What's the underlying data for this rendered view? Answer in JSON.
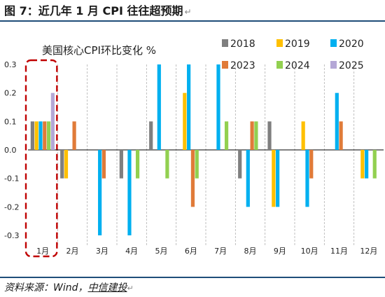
{
  "figure": {
    "title": "图 7：近几年 1 月 CPI 往往超预期",
    "source_prefix": "资料来源：Wind，",
    "source_org": "中信建投",
    "paragraph_mark": "↵"
  },
  "colors": {
    "2018": "#7f7f7f",
    "2019": "#ffc000",
    "2020": "#00b0f0",
    "2023": "#e07b39",
    "2024": "#92d050",
    "2025": "#b4a7d6",
    "rule": "#1f4e79",
    "highlight": "#c00000"
  },
  "chart_data": {
    "type": "bar",
    "title": "美国核心CPI环比变化 %",
    "categories": [
      "1月",
      "2月",
      "3月",
      "4月",
      "5月",
      "6月",
      "7月",
      "8月",
      "9月",
      "10月",
      "11月",
      "12月"
    ],
    "yticks": [
      "0.3",
      "0.2",
      "0.1",
      "0.0",
      "-0.1",
      "-0.2",
      "-0.3"
    ],
    "ylim": [
      -0.3,
      0.3
    ],
    "grid": "vertical dashed separators between categories",
    "legend_position": "top-right",
    "highlight_category": "1月",
    "series": [
      {
        "name": "2018",
        "values": [
          0.1,
          -0.1,
          0.0,
          -0.1,
          0.1,
          0.0,
          0.0,
          -0.1,
          0.1,
          0.0,
          0.0,
          0.0
        ]
      },
      {
        "name": "2019",
        "values": [
          0.1,
          -0.1,
          0.0,
          0.0,
          0.0,
          0.2,
          0.0,
          0.0,
          -0.2,
          0.1,
          0.0,
          -0.1
        ]
      },
      {
        "name": "2020",
        "values": [
          0.1,
          0.0,
          -0.3,
          -0.3,
          0.3,
          0.3,
          0.3,
          -0.2,
          -0.2,
          -0.2,
          0.2,
          -0.1
        ]
      },
      {
        "name": "2023",
        "values": [
          0.1,
          0.1,
          -0.1,
          0.0,
          0.0,
          -0.2,
          0.0,
          0.1,
          0.0,
          -0.1,
          0.1,
          0.0
        ]
      },
      {
        "name": "2024",
        "values": [
          0.1,
          0.0,
          0.0,
          -0.1,
          -0.1,
          -0.1,
          0.1,
          0.1,
          0.0,
          0.0,
          0.0,
          -0.1
        ]
      },
      {
        "name": "2025",
        "values": [
          0.2,
          null,
          null,
          null,
          null,
          null,
          null,
          null,
          null,
          null,
          null,
          null
        ]
      }
    ]
  }
}
